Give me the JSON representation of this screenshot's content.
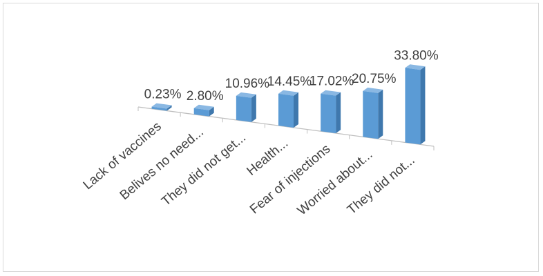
{
  "chart_data": {
    "type": "bar",
    "style": "3d-column",
    "categories": [
      "Lack of vaccines",
      "Belives no need...",
      "They did not get...",
      "Health...",
      "Fear of injections",
      "Worried about...",
      "They did not..."
    ],
    "values": [
      0.23,
      2.8,
      10.96,
      14.45,
      17.02,
      20.75,
      33.8
    ],
    "data_labels": [
      "0.23%",
      "2.80%",
      "10.96%",
      "14.45%",
      "17.02%",
      "20.75%",
      "33.80%"
    ],
    "value_unit": "%",
    "title": "",
    "xlabel": "",
    "ylabel": "",
    "ylim": [
      0,
      35
    ],
    "grid": false,
    "legend": "none",
    "colors": {
      "front": "#5b9bd5",
      "side": "#3f78ad",
      "top": "#8ab8e3",
      "axis": "#bfbfbf",
      "text": "#404040"
    }
  }
}
